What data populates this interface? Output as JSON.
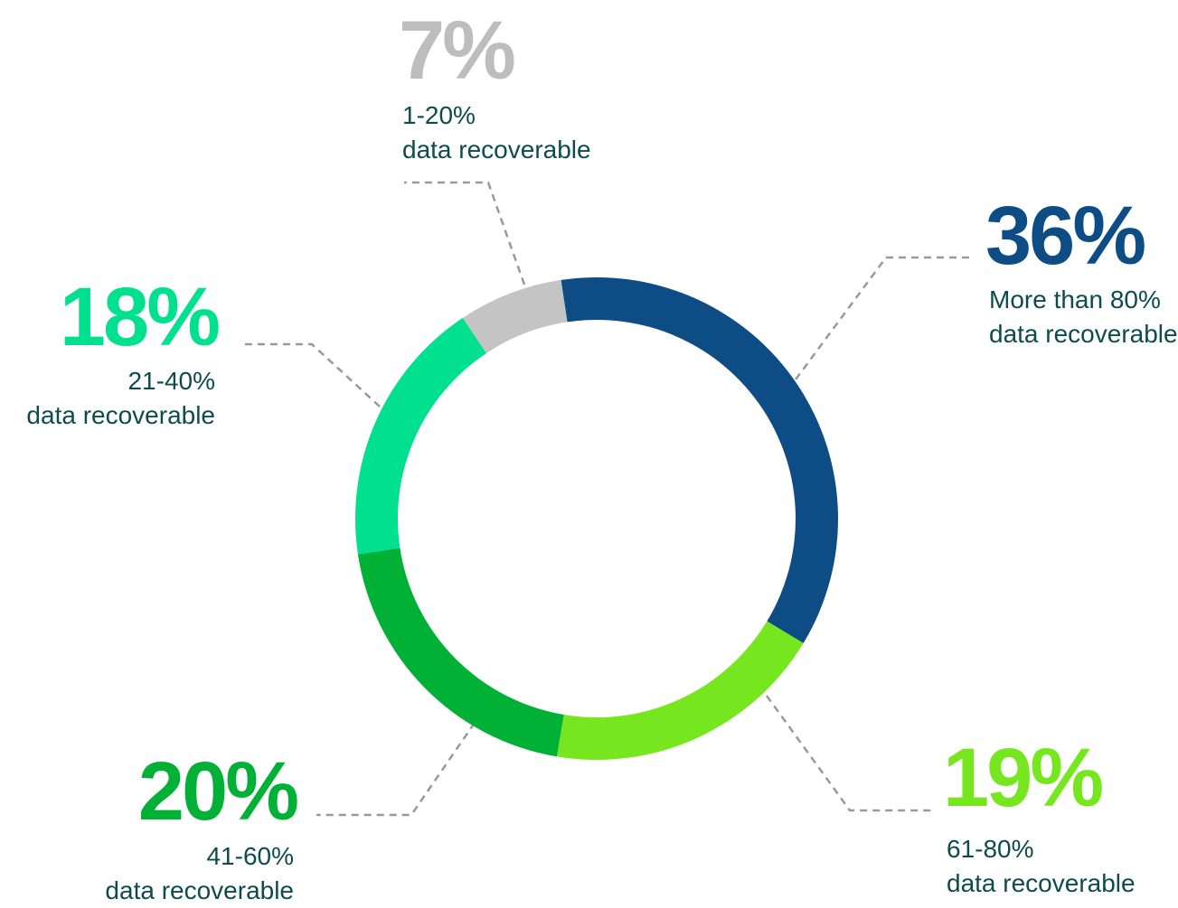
{
  "chart_data": {
    "type": "donut",
    "categories": [
      "More than 80%\ndata recoverable",
      "61-80%\ndata recoverable",
      "41-60%\ndata recoverable",
      "21-40%\ndata recoverable",
      "1-20%\ndata recoverable"
    ],
    "values": [
      36,
      19,
      20,
      18,
      7
    ],
    "value_labels": [
      "36%",
      "19%",
      "20%",
      "18%",
      "7%"
    ],
    "colors": [
      "#0d4c84",
      "#76e61f",
      "#00b136",
      "#00e08e",
      "#c4c4c4"
    ]
  }
}
